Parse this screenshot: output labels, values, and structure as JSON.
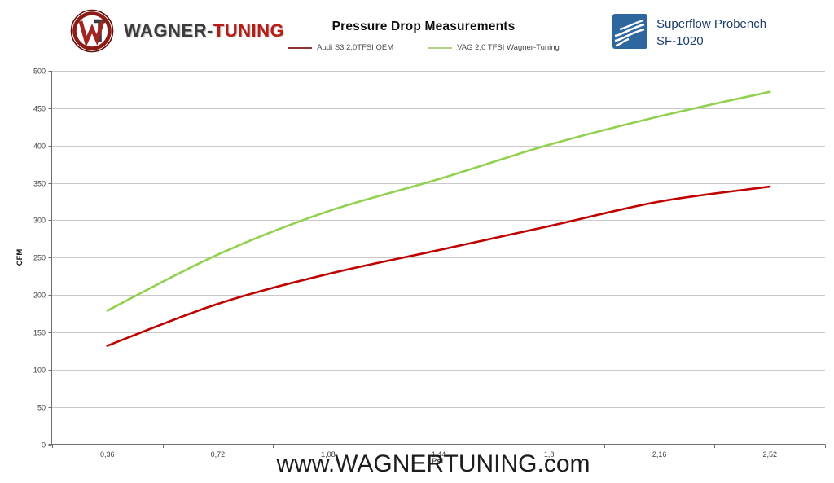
{
  "header": {
    "wagner_text_dark": "WAGNER-",
    "wagner_text_red": "TUNING",
    "title": "Pressure Drop Measurements",
    "superflow_line1": "Superflow Probench",
    "superflow_line2": "SF-1020"
  },
  "legend": [
    {
      "label": "Audi S3 2,0TFSI OEM",
      "swatch_color": "#8e3331"
    },
    {
      "label": "VAG 2,0 TFSI  Wagner-Tuning",
      "swatch_color": "#b3cf8c"
    }
  ],
  "watermark": "www.WAGNERTUNING.com",
  "chart_data": {
    "type": "line",
    "title": "Pressure Drop Measurements",
    "xlabel": "Psi",
    "ylabel": "CFM",
    "x": [
      0.36,
      0.72,
      1.08,
      1.44,
      1.8,
      2.16,
      2.52
    ],
    "x_tick_labels": [
      "0,36",
      "0,72",
      "1,08",
      "1,44",
      "1,8",
      "2,16",
      "2,52"
    ],
    "ylim": [
      0,
      500
    ],
    "ytick_step": 50,
    "grid": "horizontal",
    "legend_position": "top",
    "series": [
      {
        "name": "Audi S3 2,0TFSI OEM",
        "color": "#c00000",
        "values": [
          132,
          188,
          228,
          260,
          292,
          325,
          345
        ]
      },
      {
        "name": "VAG 2,0 TFSI  Wagner-Tuning",
        "color": "#92d050",
        "values": [
          179,
          254,
          312,
          355,
          401,
          439,
          472
        ]
      }
    ],
    "colors": {
      "gridline": "#c9c9c9",
      "axis": "#6e6e6e",
      "tick_label": "#3f3f3f"
    }
  }
}
